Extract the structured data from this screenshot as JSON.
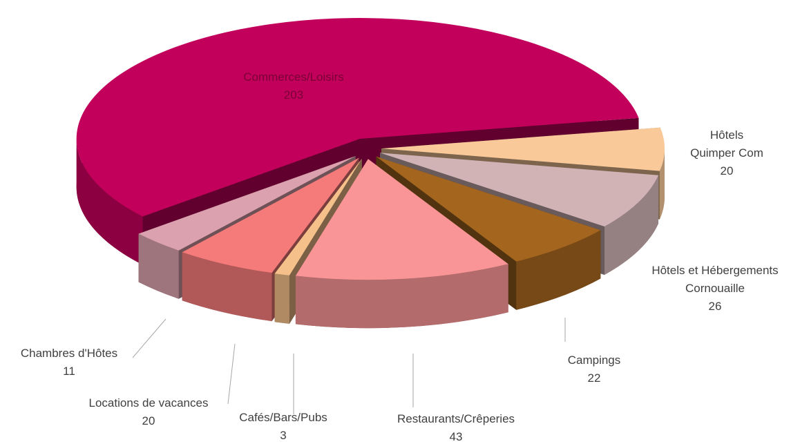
{
  "chart_data": {
    "type": "pie3d",
    "categories": [
      "Hôtels Quimper Com",
      "Hôtels et Hébergements Cornouaille",
      "Campings",
      "Restaurants/Crêperies",
      "Cafés/Bars/Pubs",
      "Locations de vacances",
      "Chambres d'Hôtes",
      "Commerces/Loisirs"
    ],
    "values": [
      20,
      26,
      22,
      43,
      3,
      20,
      11,
      203
    ],
    "colors": [
      "#f9c99a",
      "#d1b3b5",
      "#a4651f",
      "#f99596",
      "#f5c08a",
      "#f57b7a",
      "#dca1ae",
      "#c2005c"
    ]
  }
}
